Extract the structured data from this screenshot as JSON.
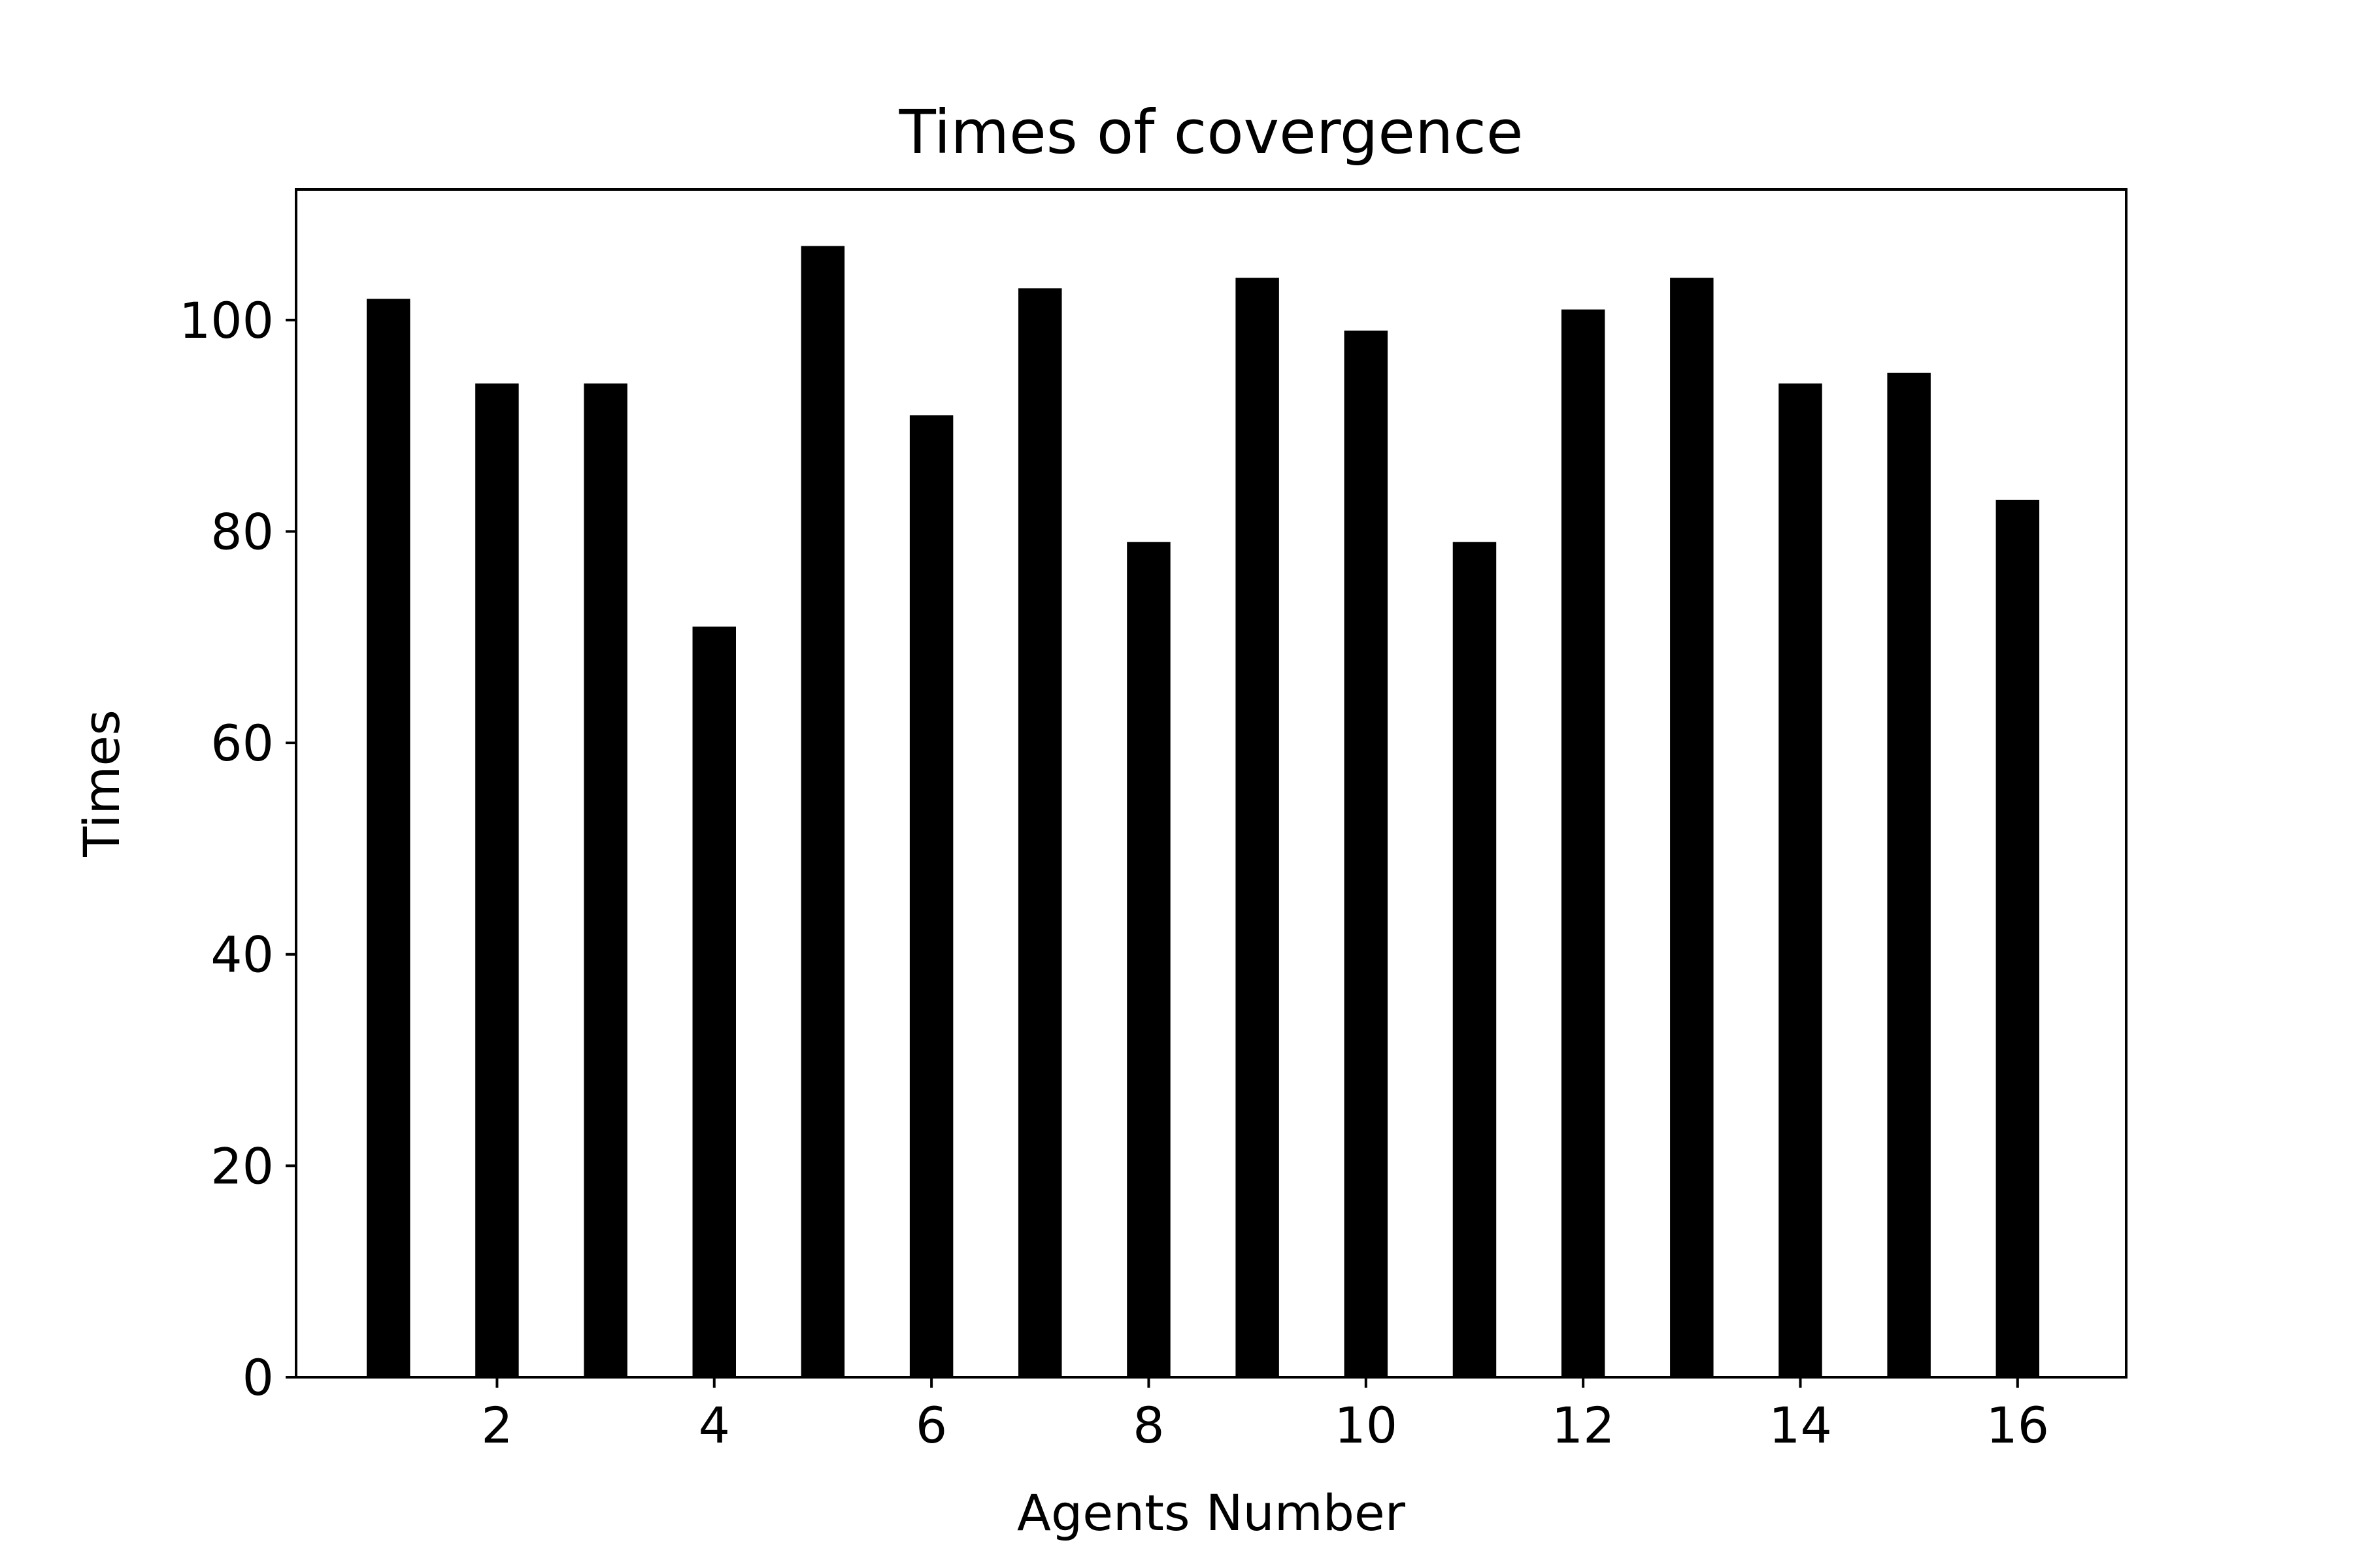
{
  "chart_data": {
    "type": "bar",
    "title": "Times of covergence",
    "xlabel": "Agents Number",
    "ylabel": "Times",
    "x": [
      1,
      2,
      3,
      4,
      5,
      6,
      7,
      8,
      9,
      10,
      11,
      12,
      13,
      14,
      15,
      16
    ],
    "values": [
      102,
      94,
      94,
      71,
      107,
      91,
      103,
      79,
      104,
      99,
      79,
      101,
      104,
      94,
      95,
      83
    ],
    "xlim": [
      0.15,
      17.0
    ],
    "ylim": [
      0,
      112.35
    ],
    "xticks": [
      2,
      4,
      6,
      8,
      10,
      12,
      14,
      16
    ],
    "yticks": [
      0,
      20,
      40,
      60,
      80,
      100
    ],
    "bar_color": "#000000",
    "grid": false,
    "legend": false
  }
}
